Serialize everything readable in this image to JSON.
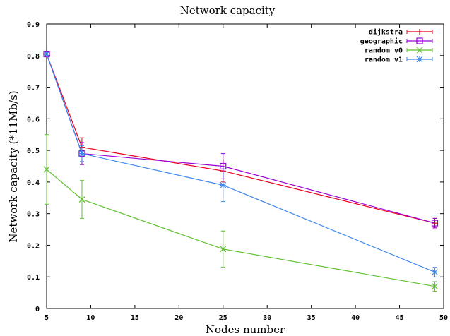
{
  "chart_data": {
    "type": "line",
    "title": "Network capacity",
    "xlabel": "Nodes number",
    "ylabel": "Network capacity (*11Mb/s)",
    "xlim": [
      5,
      50
    ],
    "ylim": [
      0,
      0.9
    ],
    "x_ticks": [
      "5",
      "10",
      "15",
      "20",
      "25",
      "30",
      "35",
      "40",
      "45",
      "50"
    ],
    "y_ticks": [
      "0",
      "0.1",
      "0.2",
      "0.3",
      "0.4",
      "0.5",
      "0.6",
      "0.7",
      "0.8",
      "0.9"
    ],
    "grid": false,
    "legend_position": "top-right",
    "x": [
      5,
      9,
      25,
      49
    ],
    "series": [
      {
        "name": "dijkstra",
        "color": "#e8001c",
        "marker": "plus",
        "values": [
          0.805,
          0.51,
          0.435,
          0.27
        ],
        "errors": [
          0.005,
          0.03,
          0.035,
          0.015
        ]
      },
      {
        "name": "geographic",
        "color": "#9a00d6",
        "marker": "square",
        "values": [
          0.805,
          0.49,
          0.45,
          0.27
        ],
        "errors": [
          0.005,
          0.035,
          0.04,
          0.015
        ]
      },
      {
        "name": "random v0",
        "color": "#5ec12e",
        "marker": "cross",
        "values": [
          0.44,
          0.345,
          0.188,
          0.07
        ],
        "errors": [
          0.11,
          0.06,
          0.057,
          0.015
        ]
      },
      {
        "name": "random v1",
        "color": "#3f86ea",
        "marker": "star",
        "values": [
          0.805,
          0.49,
          0.39,
          0.115
        ],
        "errors": [
          0.005,
          0.025,
          0.052,
          0.015
        ]
      }
    ]
  }
}
